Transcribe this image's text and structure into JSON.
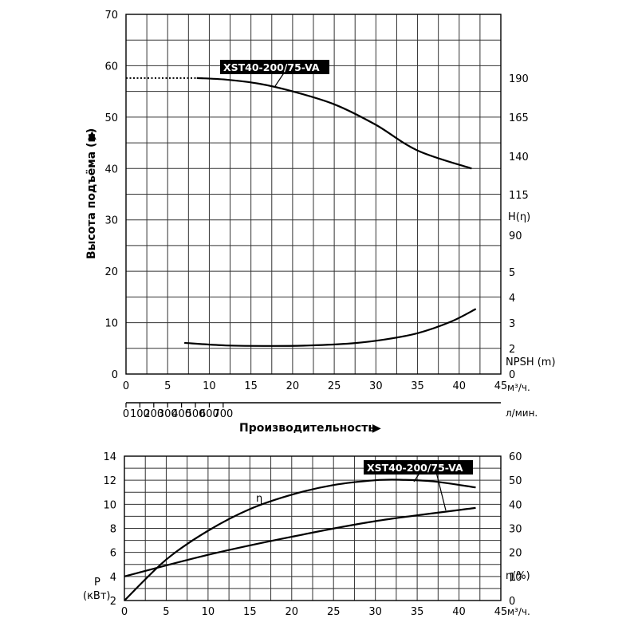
{
  "chart_data": [
    {
      "type": "line",
      "name": "head_npsh",
      "model_label": "XST40-200/75-VA",
      "x_unit": "м³/ч.",
      "x_ticks": [
        0,
        5,
        10,
        15,
        20,
        25,
        30,
        35,
        40,
        45
      ],
      "x2_unit": "л/мин.",
      "x2_ticks": [
        0,
        100,
        200,
        300,
        400,
        500,
        600,
        700
      ],
      "x2_label": "Производительность",
      "x2_label_arrow": "▶",
      "ylabel": "Высота подъёма (м)",
      "ylabel_arrow": "▶",
      "ylim": [
        0,
        70
      ],
      "y_ticks": [
        0,
        10,
        20,
        30,
        40,
        50,
        60,
        70
      ],
      "right_h_label": "H(η)",
      "right_h_ticks": [
        "190",
        "165",
        "140",
        "115",
        "90"
      ],
      "right_npsh_label": "NPSH (m)",
      "right_npsh_ticks": [
        "5",
        "4",
        "3",
        "2",
        "0"
      ],
      "grid": true,
      "series": [
        {
          "name": "H",
          "x": [
            8.5,
            12,
            16,
            20,
            25,
            30,
            35,
            41.5
          ],
          "y": [
            57.6,
            57.3,
            56.5,
            55.0,
            52.5,
            48.5,
            43.5,
            40.0
          ]
        },
        {
          "name": "NPSH",
          "x": [
            7,
            12,
            17.5,
            22,
            27,
            31,
            35,
            39,
            42
          ],
          "y": [
            2.22,
            2.12,
            2.1,
            2.12,
            2.2,
            2.35,
            2.6,
            3.05,
            3.55
          ]
        }
      ],
      "dotted_extension": {
        "x": [
          0,
          8.5
        ],
        "y": [
          57.6,
          57.6
        ]
      }
    },
    {
      "type": "line",
      "name": "power_efficiency",
      "model_label": "XST40-200/75-VA",
      "x_unit": "м³/ч.",
      "x_ticks": [
        0,
        5,
        10,
        15,
        20,
        25,
        30,
        35,
        40,
        45
      ],
      "ylabel_p": "P",
      "ylabel_p_unit": "(кВт)",
      "ylim": [
        2,
        14
      ],
      "y_ticks": [
        2,
        4,
        6,
        8,
        10,
        12,
        14
      ],
      "ylabel_eta": "η(%)",
      "eta_lim": [
        0,
        60
      ],
      "eta_ticks": [
        0,
        10,
        20,
        30,
        40,
        50,
        60
      ],
      "eta_curve_label": "η",
      "grid": true,
      "series": [
        {
          "name": "P",
          "x": [
            0,
            10,
            20,
            30,
            42
          ],
          "y": [
            4.0,
            5.8,
            7.3,
            8.6,
            9.7
          ]
        },
        {
          "name": "eta",
          "x": [
            0,
            5,
            10,
            15,
            20,
            25,
            30,
            33,
            37,
            42
          ],
          "y": [
            0,
            17,
            29,
            38,
            44,
            48,
            50,
            50.2,
            49.5,
            47
          ]
        }
      ]
    }
  ]
}
